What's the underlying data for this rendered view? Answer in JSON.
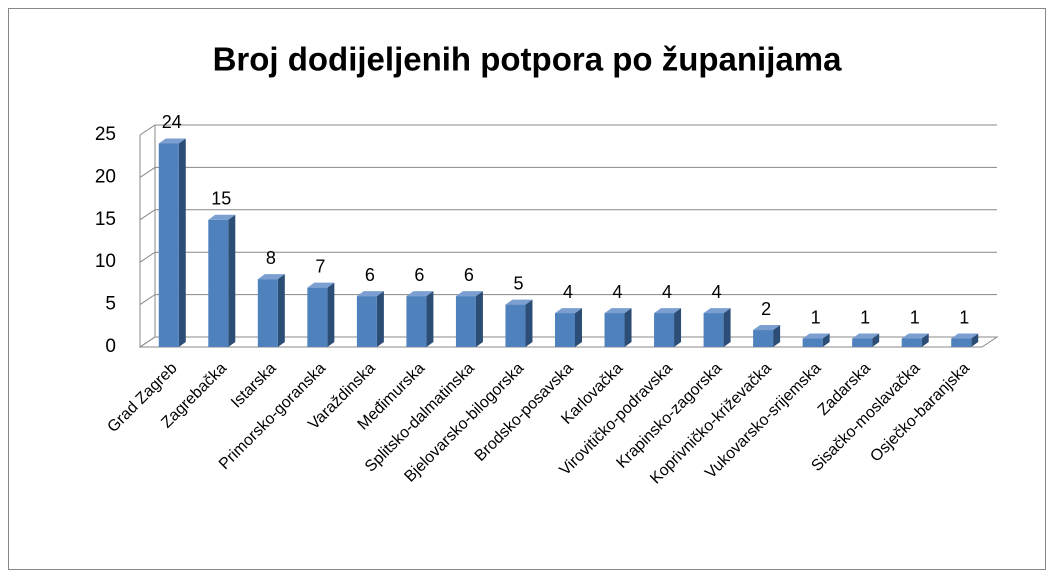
{
  "chart_data": {
    "type": "bar3d",
    "title": "Broj dodijeljenih potpora po županijama",
    "categories": [
      "Grad Zagreb",
      "Zagrebačka",
      "Istarska",
      "Primorsko-goranska",
      "Varaždinska",
      "Međimurska",
      "Splitsko-dalmatinska",
      "Bjelovarsko-bilogorska",
      "Brodsko-posavska",
      "Karlovačka",
      "Virovitičko-podravska",
      "Krapinsko-zagorska",
      "Koprivničko-križevačka",
      "Vukovarsko-srijemska",
      "Zadarska",
      "Sisačko-moslavačka",
      "Osječko-baranjska"
    ],
    "values": [
      24,
      15,
      8,
      7,
      6,
      6,
      6,
      5,
      4,
      4,
      4,
      4,
      2,
      1,
      1,
      1,
      1
    ],
    "color": "#4f81bd",
    "ylim": [
      0,
      25
    ],
    "yticks": [
      0,
      5,
      10,
      15,
      20,
      25
    ],
    "grid": true
  }
}
